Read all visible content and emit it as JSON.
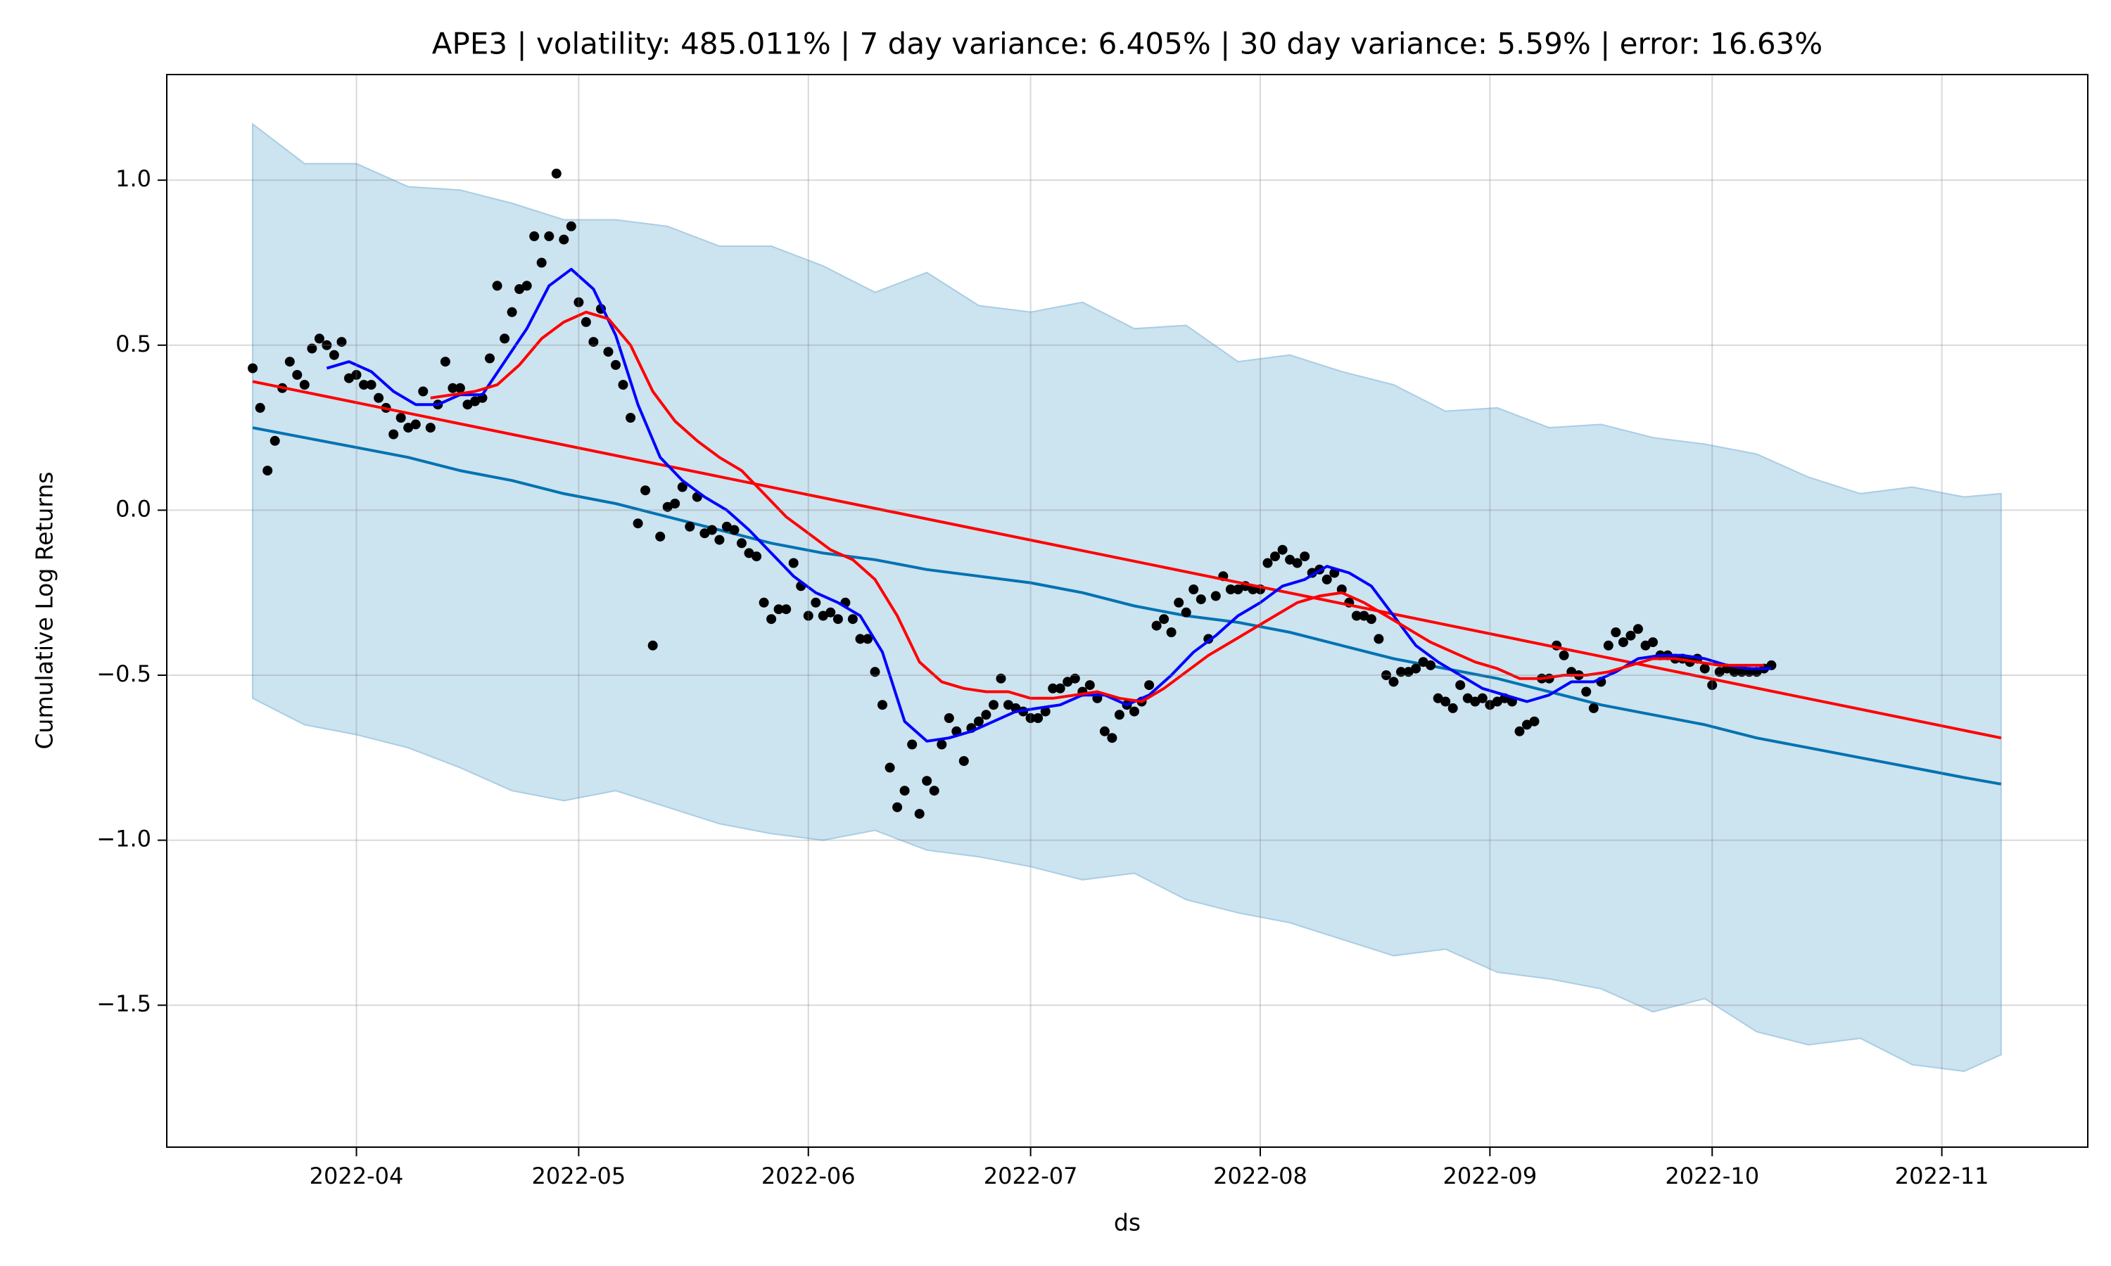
{
  "chart_data": {
    "type": "line",
    "title": "APE3 | volatility: 485.011% | 7 day variance: 6.405% | 30 day variance: 5.59% | error: 16.63%",
    "xlabel": "ds",
    "ylabel": "Cumulative Log Returns",
    "xlim": [
      65.4,
      324.7
    ],
    "xticks": [
      {
        "value": 91,
        "label": "2022-04"
      },
      {
        "value": 121,
        "label": "2022-05"
      },
      {
        "value": 152,
        "label": "2022-06"
      },
      {
        "value": 182,
        "label": "2022-07"
      },
      {
        "value": 213,
        "label": "2022-08"
      },
      {
        "value": 244,
        "label": "2022-09"
      },
      {
        "value": 274,
        "label": "2022-10"
      },
      {
        "value": 305,
        "label": "2022-11"
      }
    ],
    "ylim": [
      -1.93,
      1.32
    ],
    "yticks": [
      {
        "value": -1.5,
        "label": "−1.5"
      },
      {
        "value": -1.0,
        "label": "−1.0"
      },
      {
        "value": -0.5,
        "label": "−0.5"
      },
      {
        "value": 0,
        "label": "0.0"
      },
      {
        "value": 0.5,
        "label": "0.5"
      },
      {
        "value": 1.0,
        "label": "1.0"
      }
    ],
    "grid": true,
    "series": [
      {
        "type": "band",
        "color": "#cce3f0",
        "x": [
          77,
          84,
          91,
          98,
          105,
          112,
          119,
          126,
          133,
          140,
          147,
          154,
          161,
          168,
          175,
          182,
          189,
          196,
          203,
          210,
          217,
          224,
          231,
          238,
          245,
          252,
          259,
          266,
          273,
          280,
          287,
          294,
          301,
          308,
          313
        ],
        "upper": [
          1.17,
          1.05,
          1.05,
          0.98,
          0.97,
          0.93,
          0.88,
          0.88,
          0.86,
          0.8,
          0.8,
          0.74,
          0.66,
          0.72,
          0.62,
          0.6,
          0.63,
          0.55,
          0.56,
          0.45,
          0.47,
          0.42,
          0.38,
          0.3,
          0.31,
          0.25,
          0.26,
          0.22,
          0.2,
          0.17,
          0.1,
          0.05,
          0.07,
          0.04,
          0.05
        ],
        "lower": [
          -0.57,
          -0.65,
          -0.68,
          -0.72,
          -0.78,
          -0.85,
          -0.88,
          -0.85,
          -0.9,
          -0.95,
          -0.98,
          -1.0,
          -0.97,
          -1.03,
          -1.05,
          -1.08,
          -1.12,
          -1.1,
          -1.18,
          -1.22,
          -1.25,
          -1.3,
          -1.35,
          -1.33,
          -1.4,
          -1.42,
          -1.45,
          -1.52,
          -1.48,
          -1.58,
          -1.62,
          -1.6,
          -1.68,
          -1.7,
          -1.65
        ]
      },
      {
        "type": "line",
        "color": "#0072b2",
        "x": [
          77,
          84,
          91,
          98,
          105,
          112,
          119,
          126,
          133,
          140,
          147,
          154,
          161,
          168,
          175,
          182,
          189,
          196,
          203,
          210,
          217,
          224,
          231,
          238,
          245,
          252,
          259,
          266,
          273,
          280,
          287,
          294,
          301,
          308,
          313
        ],
        "values": [
          0.25,
          0.22,
          0.19,
          0.16,
          0.12,
          0.09,
          0.05,
          0.02,
          -0.02,
          -0.06,
          -0.1,
          -0.13,
          -0.15,
          -0.18,
          -0.2,
          -0.22,
          -0.25,
          -0.29,
          -0.32,
          -0.34,
          -0.37,
          -0.41,
          -0.45,
          -0.48,
          -0.51,
          -0.55,
          -0.59,
          -0.62,
          -0.65,
          -0.69,
          -0.72,
          -0.75,
          -0.78,
          -0.81,
          -0.83
        ]
      },
      {
        "type": "scatter",
        "color": "#000000",
        "x": [
          77,
          78,
          79,
          80,
          81,
          82,
          83,
          84,
          85,
          86,
          87,
          88,
          89,
          90,
          91,
          92,
          93,
          94,
          95,
          96,
          97,
          98,
          99,
          100,
          101,
          102,
          103,
          104,
          105,
          106,
          107,
          108,
          109,
          110,
          111,
          112,
          113,
          114,
          115,
          116,
          117,
          118,
          119,
          120,
          121,
          122,
          123,
          124,
          125,
          126,
          127,
          128,
          129,
          130,
          131,
          132,
          133,
          134,
          135,
          136,
          137,
          138,
          139,
          140,
          141,
          142,
          143,
          144,
          145,
          146,
          147,
          148,
          149,
          150,
          151,
          152,
          153,
          154,
          155,
          156,
          157,
          158,
          159,
          160,
          161,
          162,
          163,
          164,
          165,
          166,
          167,
          168,
          169,
          170,
          171,
          172,
          173,
          174,
          175,
          176,
          177,
          178,
          179,
          180,
          181,
          182,
          183,
          184,
          185,
          186,
          187,
          188,
          189,
          190,
          191,
          192,
          193,
          194,
          195,
          196,
          197,
          198,
          199,
          200,
          201,
          202,
          203,
          204,
          205,
          206,
          207,
          208,
          209,
          210,
          211,
          212,
          213,
          214,
          215,
          216,
          217,
          218,
          219,
          220,
          221,
          222,
          223,
          224,
          225,
          226,
          227,
          228,
          229,
          230,
          231,
          232,
          233,
          234,
          235,
          236,
          237,
          238,
          239,
          240,
          241,
          242,
          243,
          244,
          245,
          246,
          247,
          248,
          249,
          250,
          251,
          252,
          253,
          254,
          255,
          256,
          257,
          258,
          259,
          260,
          261,
          262,
          263,
          264,
          265,
          266,
          267,
          268,
          269,
          270,
          271,
          272,
          273,
          274,
          275,
          276,
          277,
          278,
          279,
          280,
          281,
          282
        ],
        "values": [
          0.43,
          0.31,
          0.12,
          0.21,
          0.37,
          0.45,
          0.41,
          0.38,
          0.49,
          0.52,
          0.5,
          0.47,
          0.51,
          0.4,
          0.41,
          0.38,
          0.38,
          0.34,
          0.31,
          0.23,
          0.28,
          0.25,
          0.26,
          0.36,
          0.25,
          0.32,
          0.45,
          0.37,
          0.37,
          0.32,
          0.33,
          0.34,
          0.46,
          0.68,
          0.52,
          0.6,
          0.67,
          0.68,
          0.83,
          0.75,
          0.83,
          1.02,
          0.82,
          0.86,
          0.63,
          0.57,
          0.51,
          0.61,
          0.48,
          0.44,
          0.38,
          0.28,
          -0.04,
          0.06,
          -0.41,
          -0.08,
          0.01,
          0.02,
          0.07,
          -0.05,
          0.04,
          -0.07,
          -0.06,
          -0.09,
          -0.05,
          -0.06,
          -0.1,
          -0.13,
          -0.14,
          -0.28,
          -0.33,
          -0.3,
          -0.3,
          -0.16,
          -0.23,
          -0.32,
          -0.28,
          -0.32,
          -0.31,
          -0.33,
          -0.28,
          -0.33,
          -0.39,
          -0.39,
          -0.49,
          -0.59,
          -0.78,
          -0.9,
          -0.85,
          -0.71,
          -0.92,
          -0.82,
          -0.85,
          -0.71,
          -0.63,
          -0.67,
          -0.76,
          -0.66,
          -0.64,
          -0.62,
          -0.59,
          -0.51,
          -0.59,
          -0.6,
          -0.61,
          -0.63,
          -0.63,
          -0.61,
          -0.54,
          -0.54,
          -0.52,
          -0.51,
          -0.55,
          -0.53,
          -0.57,
          -0.67,
          -0.69,
          -0.62,
          -0.59,
          -0.61,
          -0.58,
          -0.53,
          -0.35,
          -0.33,
          -0.37,
          -0.28,
          -0.31,
          -0.24,
          -0.27,
          -0.39,
          -0.26,
          -0.2,
          -0.24,
          -0.24,
          -0.23,
          -0.24,
          -0.24,
          -0.16,
          -0.14,
          -0.12,
          -0.15,
          -0.16,
          -0.14,
          -0.19,
          -0.18,
          -0.21,
          -0.19,
          -0.24,
          -0.28,
          -0.32,
          -0.32,
          -0.33,
          -0.39,
          -0.5,
          -0.52,
          -0.49,
          -0.49,
          -0.48,
          -0.46,
          -0.47,
          -0.57,
          -0.58,
          -0.6,
          -0.53,
          -0.57,
          -0.58,
          -0.57,
          -0.59,
          -0.58,
          -0.57,
          -0.58,
          -0.67,
          -0.65,
          -0.64,
          -0.51,
          -0.51,
          -0.41,
          -0.44,
          -0.49,
          -0.5,
          -0.55,
          -0.6,
          -0.52,
          -0.41,
          -0.37,
          -0.4,
          -0.38,
          -0.36,
          -0.41,
          -0.4,
          -0.44,
          -0.44,
          -0.45,
          -0.45,
          -0.46,
          -0.45,
          -0.48,
          -0.53,
          -0.49,
          -0.48,
          -0.49,
          -0.49,
          -0.49,
          -0.49,
          -0.48,
          -0.47
        ]
      },
      {
        "type": "line",
        "color": "#ff0000",
        "x": [
          77,
          313
        ],
        "values": [
          0.39,
          -0.69
        ]
      },
      {
        "type": "line",
        "color": "#0000ff",
        "x": [
          87,
          90,
          93,
          96,
          99,
          102,
          105,
          108,
          111,
          114,
          117,
          120,
          123,
          126,
          129,
          132,
          135,
          138,
          141,
          144,
          147,
          150,
          153,
          156,
          159,
          162,
          165,
          168,
          171,
          174,
          177,
          180,
          183,
          186,
          189,
          192,
          195,
          198,
          201,
          204,
          207,
          210,
          213,
          216,
          219,
          222,
          225,
          228,
          231,
          234,
          237,
          240,
          243,
          246,
          249,
          252,
          255,
          258,
          261,
          264,
          267,
          270,
          273,
          276,
          279,
          282
        ],
        "values": [
          0.43,
          0.45,
          0.42,
          0.36,
          0.32,
          0.32,
          0.35,
          0.35,
          0.45,
          0.55,
          0.68,
          0.73,
          0.67,
          0.53,
          0.32,
          0.16,
          0.09,
          0.04,
          0.0,
          -0.06,
          -0.13,
          -0.2,
          -0.25,
          -0.28,
          -0.32,
          -0.43,
          -0.64,
          -0.7,
          -0.69,
          -0.67,
          -0.64,
          -0.61,
          -0.6,
          -0.59,
          -0.56,
          -0.56,
          -0.59,
          -0.56,
          -0.5,
          -0.43,
          -0.38,
          -0.32,
          -0.28,
          -0.23,
          -0.21,
          -0.17,
          -0.19,
          -0.23,
          -0.32,
          -0.41,
          -0.46,
          -0.5,
          -0.54,
          -0.56,
          -0.58,
          -0.56,
          -0.52,
          -0.52,
          -0.49,
          -0.45,
          -0.44,
          -0.44,
          -0.45,
          -0.47,
          -0.48,
          -0.48
        ]
      },
      {
        "type": "line",
        "color": "#ff0000",
        "x": [
          101,
          104,
          107,
          110,
          113,
          116,
          119,
          122,
          125,
          128,
          131,
          134,
          137,
          140,
          143,
          146,
          149,
          152,
          155,
          158,
          161,
          164,
          167,
          170,
          173,
          176,
          179,
          182,
          185,
          188,
          191,
          194,
          197,
          200,
          203,
          206,
          209,
          212,
          215,
          218,
          221,
          224,
          227,
          230,
          233,
          236,
          239,
          242,
          245,
          248,
          251,
          254,
          257,
          260,
          263,
          266,
          269,
          272,
          275,
          278,
          281
        ],
        "values": [
          0.34,
          0.35,
          0.36,
          0.38,
          0.44,
          0.52,
          0.57,
          0.6,
          0.58,
          0.5,
          0.36,
          0.27,
          0.21,
          0.16,
          0.12,
          0.05,
          -0.02,
          -0.07,
          -0.12,
          -0.15,
          -0.21,
          -0.32,
          -0.46,
          -0.52,
          -0.54,
          -0.55,
          -0.55,
          -0.57,
          -0.57,
          -0.56,
          -0.55,
          -0.57,
          -0.58,
          -0.54,
          -0.49,
          -0.44,
          -0.4,
          -0.36,
          -0.32,
          -0.28,
          -0.26,
          -0.25,
          -0.28,
          -0.32,
          -0.36,
          -0.4,
          -0.43,
          -0.46,
          -0.48,
          -0.51,
          -0.51,
          -0.5,
          -0.5,
          -0.49,
          -0.47,
          -0.45,
          -0.45,
          -0.46,
          -0.47,
          -0.47,
          -0.47
        ]
      }
    ]
  }
}
